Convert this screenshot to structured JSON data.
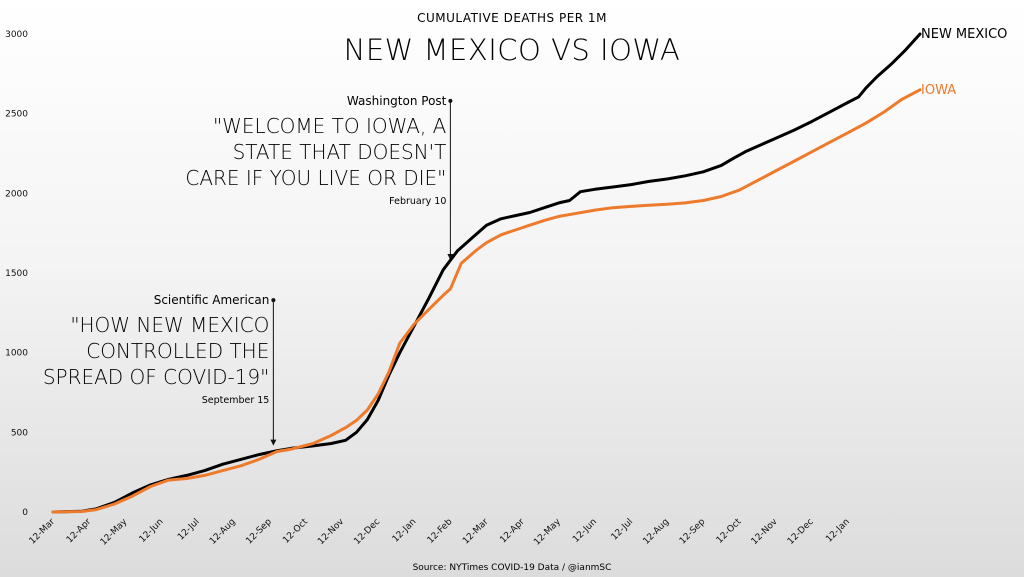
{
  "chart_data": {
    "type": "line",
    "title": "NEW MEXICO VS IOWA",
    "subtitle": "CUMULATIVE DEATHS PER 1M",
    "source": "Source: NYTimes COVID-19 Data / @ianmSC",
    "xlabel": "",
    "ylabel": "",
    "ylim": [
      0,
      3000
    ],
    "yticks": [
      0,
      500,
      1000,
      1500,
      2000,
      2500,
      3000
    ],
    "x_ticks": [
      "12-Mar",
      "12-Apr",
      "12-May",
      "12-Jun",
      "12-Jul",
      "12-Aug",
      "12-Sep",
      "12-Oct",
      "12-Nov",
      "12-Dec",
      "12-Jan",
      "12-Feb",
      "12-Mar",
      "12-Apr",
      "12-May",
      "12-Jun",
      "12-Jul",
      "12-Aug",
      "12-Sep",
      "12-Oct",
      "12-Nov",
      "12-Dec",
      "12-Jan"
    ],
    "grid": false,
    "series": [
      {
        "name": "NEW MEXICO",
        "color": "#000000",
        "values": [
          [
            0,
            0
          ],
          [
            0.8,
            5
          ],
          [
            1.2,
            20
          ],
          [
            1.7,
            60
          ],
          [
            2.2,
            120
          ],
          [
            2.7,
            170
          ],
          [
            3.2,
            205
          ],
          [
            3.7,
            230
          ],
          [
            4.2,
            260
          ],
          [
            4.7,
            300
          ],
          [
            5.2,
            330
          ],
          [
            5.7,
            360
          ],
          [
            6.2,
            385
          ],
          [
            6.6,
            400
          ],
          [
            7.2,
            415
          ],
          [
            7.7,
            430
          ],
          [
            8.1,
            450
          ],
          [
            8.4,
            500
          ],
          [
            8.7,
            580
          ],
          [
            9.0,
            700
          ],
          [
            9.3,
            860
          ],
          [
            9.6,
            1000
          ],
          [
            10.0,
            1170
          ],
          [
            10.4,
            1340
          ],
          [
            10.8,
            1520
          ],
          [
            11.2,
            1640
          ],
          [
            11.6,
            1720
          ],
          [
            12.0,
            1800
          ],
          [
            12.4,
            1840
          ],
          [
            12.8,
            1860
          ],
          [
            13.2,
            1880
          ],
          [
            13.6,
            1910
          ],
          [
            14.0,
            1940
          ],
          [
            14.3,
            1955
          ],
          [
            14.6,
            2010
          ],
          [
            15.0,
            2025
          ],
          [
            15.5,
            2040
          ],
          [
            16.0,
            2055
          ],
          [
            16.5,
            2075
          ],
          [
            17.0,
            2090
          ],
          [
            17.5,
            2110
          ],
          [
            18.0,
            2135
          ],
          [
            18.5,
            2175
          ],
          [
            18.8,
            2215
          ],
          [
            19.2,
            2265
          ],
          [
            19.6,
            2305
          ],
          [
            20.0,
            2345
          ],
          [
            20.5,
            2395
          ],
          [
            21.0,
            2450
          ],
          [
            21.5,
            2510
          ],
          [
            22.0,
            2570
          ],
          [
            22.3,
            2605
          ],
          [
            22.5,
            2660
          ],
          [
            22.8,
            2730
          ],
          [
            23.2,
            2810
          ],
          [
            23.6,
            2900
          ],
          [
            24.0,
            3000
          ]
        ]
      },
      {
        "name": "IOWA",
        "color": "#ee7a2c",
        "values": [
          [
            0,
            0
          ],
          [
            0.8,
            3
          ],
          [
            1.2,
            15
          ],
          [
            1.7,
            50
          ],
          [
            2.2,
            100
          ],
          [
            2.7,
            160
          ],
          [
            3.2,
            200
          ],
          [
            3.7,
            210
          ],
          [
            4.2,
            230
          ],
          [
            4.7,
            260
          ],
          [
            5.2,
            290
          ],
          [
            5.7,
            330
          ],
          [
            6.2,
            380
          ],
          [
            6.6,
            395
          ],
          [
            7.2,
            430
          ],
          [
            7.7,
            480
          ],
          [
            8.1,
            530
          ],
          [
            8.4,
            575
          ],
          [
            8.7,
            640
          ],
          [
            9.0,
            740
          ],
          [
            9.3,
            880
          ],
          [
            9.6,
            1060
          ],
          [
            10.0,
            1180
          ],
          [
            10.4,
            1270
          ],
          [
            10.8,
            1360
          ],
          [
            11.0,
            1400
          ],
          [
            11.3,
            1560
          ],
          [
            11.7,
            1640
          ],
          [
            12.0,
            1690
          ],
          [
            12.4,
            1740
          ],
          [
            12.8,
            1770
          ],
          [
            13.2,
            1800
          ],
          [
            13.6,
            1830
          ],
          [
            14.0,
            1855
          ],
          [
            14.5,
            1875
          ],
          [
            15.0,
            1895
          ],
          [
            15.5,
            1910
          ],
          [
            16.0,
            1918
          ],
          [
            16.5,
            1925
          ],
          [
            17.0,
            1932
          ],
          [
            17.5,
            1940
          ],
          [
            18.0,
            1955
          ],
          [
            18.5,
            1980
          ],
          [
            19.0,
            2020
          ],
          [
            19.5,
            2080
          ],
          [
            20.0,
            2140
          ],
          [
            20.5,
            2200
          ],
          [
            21.0,
            2260
          ],
          [
            21.5,
            2320
          ],
          [
            22.0,
            2380
          ],
          [
            22.5,
            2440
          ],
          [
            23.0,
            2510
          ],
          [
            23.5,
            2590
          ],
          [
            24.0,
            2650
          ]
        ]
      }
    ],
    "annotations": [
      {
        "source": "Washington Post",
        "quote": [
          "\"WELCOME TO IOWA, A",
          "STATE THAT DOESN'T",
          "CARE IF YOU LIVE OR DIE\""
        ],
        "date": "February 10",
        "x": 11.0,
        "y": 1550,
        "line_top_y": 2580
      },
      {
        "source": "Scientific American",
        "quote": [
          "\"HOW NEW MEXICO",
          "CONTROLLED THE",
          "SPREAD OF COVID-19\""
        ],
        "date": "September 15",
        "x": 6.1,
        "y": 385,
        "line_top_y": 1330
      }
    ]
  }
}
